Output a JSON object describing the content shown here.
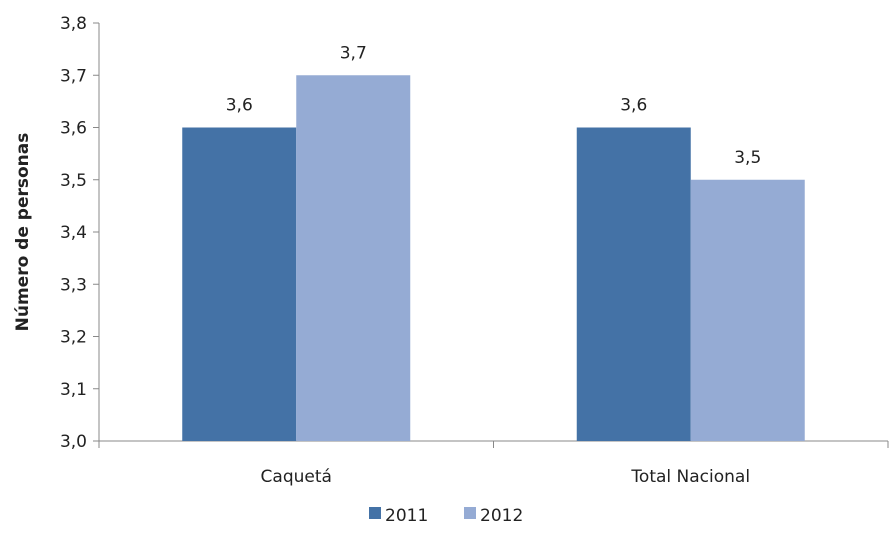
{
  "chart_data": {
    "type": "bar",
    "categories": [
      "Caquetá",
      "Total Nacional"
    ],
    "series": [
      {
        "name": "2011",
        "values": [
          3.6,
          3.6
        ],
        "color": "#4472A6"
      },
      {
        "name": "2012",
        "values": [
          3.7,
          3.5
        ],
        "color": "#95ABD4"
      }
    ],
    "data_labels": [
      [
        "3,6",
        "3,6"
      ],
      [
        "3,7",
        "3,5"
      ]
    ],
    "ylabel": "Número de personas",
    "xlabel": "",
    "ylim": [
      3.0,
      3.8
    ],
    "yticks": [
      "3,0",
      "3,1",
      "3,2",
      "3,3",
      "3,4",
      "3,5",
      "3,6",
      "3,7",
      "3,8"
    ],
    "grid": false,
    "legend_position": "bottom"
  }
}
